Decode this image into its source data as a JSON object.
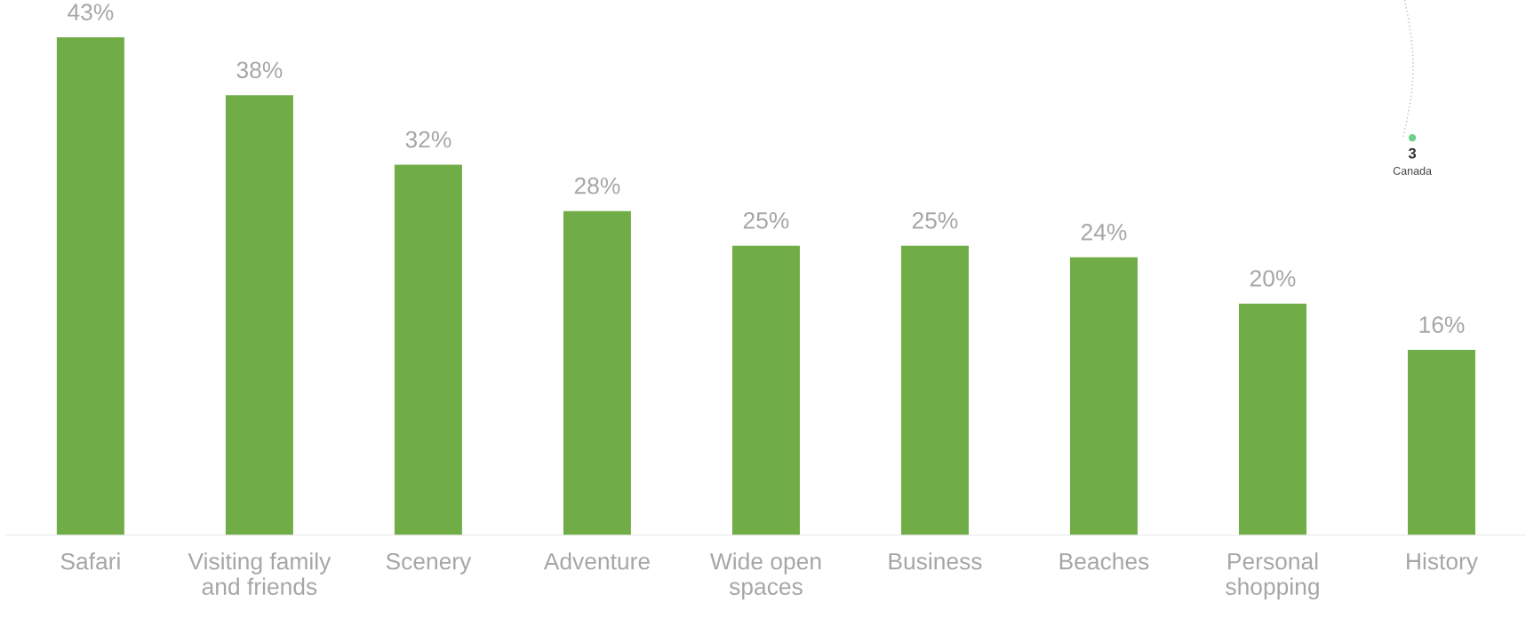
{
  "chart_data": {
    "type": "bar",
    "categories": [
      "Safari",
      "Visiting family\nand friends",
      "Scenery",
      "Adventure",
      "Wide open\nspaces",
      "Business",
      "Beaches",
      "Personal\nshopping",
      "History"
    ],
    "values": [
      43,
      38,
      32,
      28,
      25,
      25,
      24,
      20,
      16
    ],
    "color": "#70ad47",
    "data_labels": true,
    "value_labels": [
      "43%",
      "38%",
      "32%",
      "28%",
      "25%",
      "25%",
      "24%",
      "20%",
      "16%"
    ],
    "annotations": [
      "3",
      "Canada"
    ],
    "grid": false,
    "legend": false
  }
}
